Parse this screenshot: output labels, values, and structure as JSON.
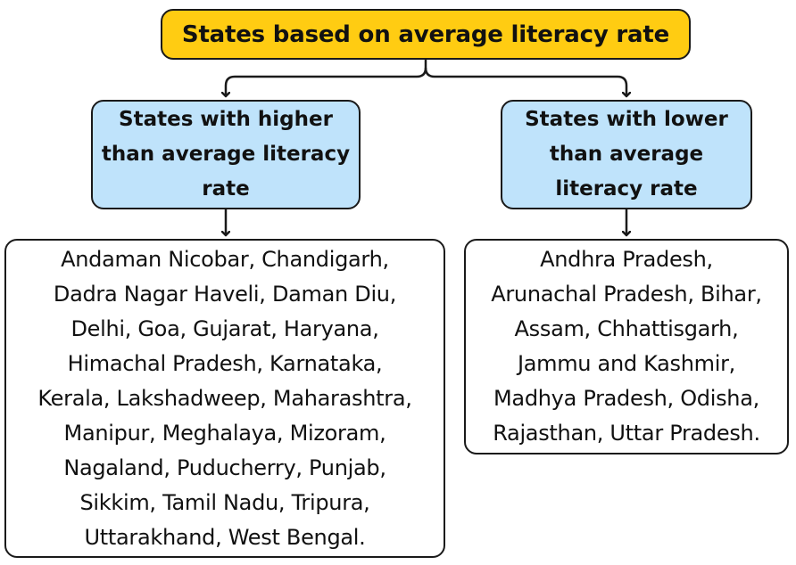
{
  "root": {
    "label": "States based on average literacy rate"
  },
  "categories": [
    {
      "label": "States with higher than average literacy rate",
      "lines": [
        "States with higher",
        "than average literacy",
        "rate"
      ],
      "color": "#bfe3fb",
      "states": [
        "Andaman Nicobar, Chandigarh,",
        "Dadra Nagar Haveli, Daman Diu,",
        "Delhi, Goa, Gujarat, Haryana,",
        "Himachal Pradesh, Karnataka,",
        "Kerala, Lakshadweep, Maharashtra,",
        "Manipur, Meghalaya, Mizoram,",
        "Nagaland, Puducherry, Punjab,",
        "Sikkim, Tamil Nadu, Tripura,",
        "Uttarakhand, West Bengal."
      ]
    },
    {
      "label": "States with lower than average literacy rate",
      "lines": [
        "States with lower",
        "than average",
        "literacy rate"
      ],
      "color": "#bfe3fb",
      "states": [
        "Andhra Pradesh,",
        "Arunachal Pradesh, Bihar,",
        "Assam, Chhattisgarh,",
        "Jammu and Kashmir,",
        "Madhya Pradesh, Odisha,",
        "Rajasthan, Uttar Pradesh."
      ]
    }
  ],
  "colors": {
    "root_fill": "#ffcc12",
    "category_fill": "#bfe3fb",
    "border": "#1a1a1a"
  }
}
